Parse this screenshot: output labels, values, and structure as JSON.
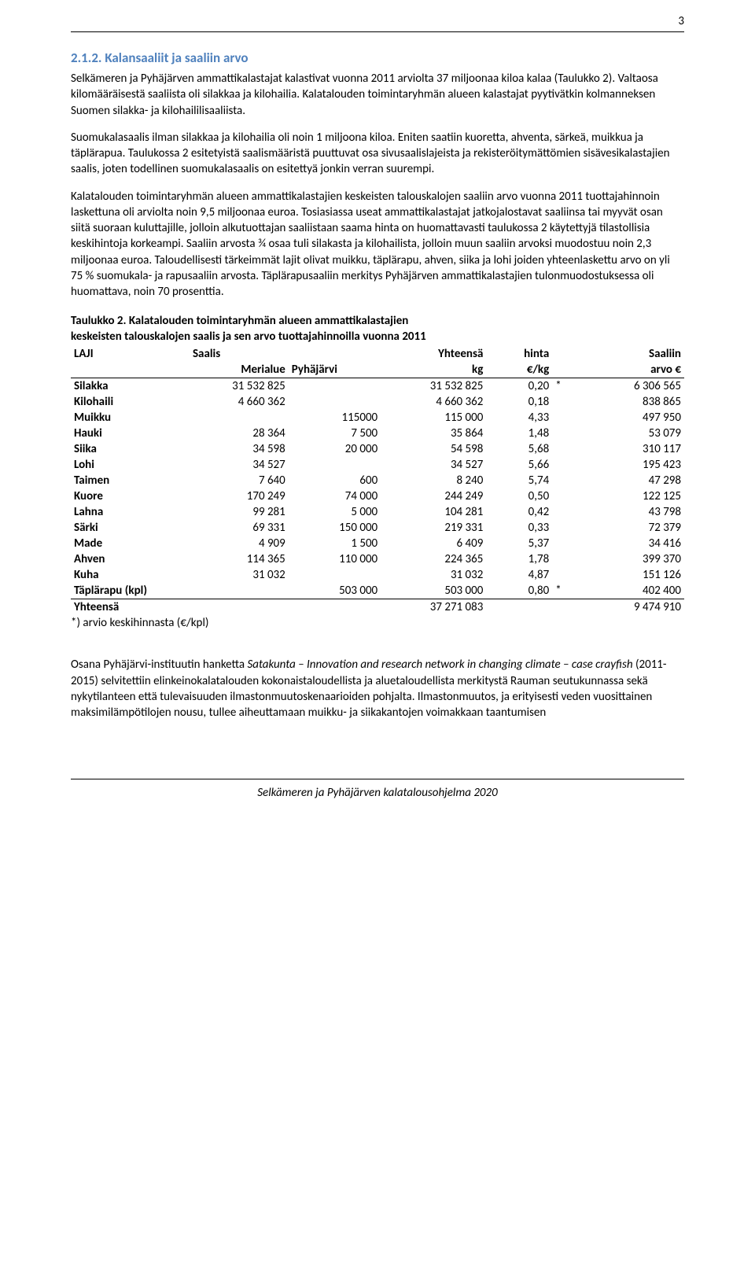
{
  "page_number": "3",
  "heading": "2.1.2.  Kalansaaliit ja saaliin arvo",
  "paragraphs": {
    "p1": "Selkämeren ja Pyhäjärven ammattikalastajat kalastivat vuonna 2011 arviolta 37 miljoonaa kiloa kalaa (Taulukko 2). Valtaosa kilomääräisestä saaliista oli silakkaa ja kilohailia. Kalatalouden toimintaryhmän alueen kalastajat pyytivätkin kolmanneksen Suomen silakka- ja kilohaililisaaliista.",
    "p2": "Suomukalasaalis ilman silakkaa ja kilohailia oli noin 1 miljoona kiloa. Eniten saatiin kuoretta, ahventa, särkeä, muikkua ja täplärapua. Taulukossa 2 esitetyistä saalismääristä puuttuvat osa sivusaalislajeista ja rekisteröitymättömien sisävesikalastajien saalis, joten todellinen suomukalasaalis on esitettyä jonkin verran suurempi.",
    "p3": "Kalatalouden toimintaryhmän alueen ammattikalastajien keskeisten talouskalojen saaliin arvo vuonna 2011 tuottajahinnoin laskettuna oli arviolta noin 9,5 miljoonaa euroa. Tosiasiassa useat ammattikalastajat jatkojalostavat saaliinsa tai myyvät osan siitä suoraan kuluttajille, jolloin alkutuottajan saaliistaan saama hinta on huomattavasti taulukossa 2 käytettyjä tilastollisia keskihintoja korkeampi. Saaliin arvosta ¾ osaa tuli silakasta ja kilohailista, jolloin muun saaliin arvoksi muodostuu noin 2,3 miljoonaa euroa. Taloudellisesti tärkeimmät lajit olivat muikku, täplärapu, ahven, siika ja lohi joiden yhteenlaskettu arvo on yli 75 % suomukala- ja rapusaaliin arvosta. Täplärapusaaliin merkitys Pyhäjärven ammattikalastajien tulonmuodostuksessa oli huomattava, noin 70 prosenttia.",
    "p4_pre": "Osana Pyhäjärvi-instituutin hanketta ",
    "p4_ital": "Satakunta  – Innovation and research network in changing climate – case crayfish",
    "p4_post": " (2011-2015) selvitettiin elinkeinokalatalouden kokonaistaloudellista ja aluetaloudellista merkitystä Rauman seutukunnassa sekä nykytilanteen että tulevaisuuden ilmastonmuutoskenaarioiden pohjalta. Ilmastonmuutos, ja erityisesti veden vuosittainen maksimilämpötilojen nousu, tullee aiheuttamaan muikku- ja siikakantojen voimakkaan taantumisen"
  },
  "table": {
    "title_l1": "Taulukko 2. Kalatalouden toimintaryhmän alueen ammattikalastajien",
    "title_l2": "keskeisten talouskalojen saalis ja sen arvo tuottajahinnoilla vuonna 2011",
    "head": {
      "laji": "LAJI",
      "saalis": "Saalis",
      "yhteensa": "Yhteensä",
      "hinta": "hinta",
      "saaliin": "Saaliin",
      "merialue": "Merialue",
      "pyhajarvi": "Pyhäjärvi",
      "kg": "kg",
      "eurkg": "€/kg",
      "arvo": "arvo €"
    },
    "rows": [
      {
        "laji": "Silakka",
        "meri": "31 532 825",
        "pyha": "",
        "yht": "31 532 825",
        "hinta": "0,20",
        "star": "*",
        "arvo": "6 306 565"
      },
      {
        "laji": "Kilohaili",
        "meri": "4 660 362",
        "pyha": "",
        "yht": "4 660 362",
        "hinta": "0,18",
        "star": "",
        "arvo": "838 865"
      },
      {
        "laji": "Muikku",
        "meri": "",
        "pyha": "115000",
        "yht": "115 000",
        "hinta": "4,33",
        "star": "",
        "arvo": "497 950"
      },
      {
        "laji": "Hauki",
        "meri": "28 364",
        "pyha": "7 500",
        "yht": "35 864",
        "hinta": "1,48",
        "star": "",
        "arvo": "53 079"
      },
      {
        "laji": "Siika",
        "meri": "34 598",
        "pyha": "20 000",
        "yht": "54 598",
        "hinta": "5,68",
        "star": "",
        "arvo": "310 117"
      },
      {
        "laji": "Lohi",
        "meri": "34 527",
        "pyha": "",
        "yht": "34 527",
        "hinta": "5,66",
        "star": "",
        "arvo": "195 423"
      },
      {
        "laji": "Taimen",
        "meri": "7 640",
        "pyha": "600",
        "yht": "8 240",
        "hinta": "5,74",
        "star": "",
        "arvo": "47 298"
      },
      {
        "laji": "Kuore",
        "meri": "170 249",
        "pyha": "74 000",
        "yht": "244 249",
        "hinta": "0,50",
        "star": "",
        "arvo": "122 125"
      },
      {
        "laji": "Lahna",
        "meri": "99 281",
        "pyha": "5 000",
        "yht": "104 281",
        "hinta": "0,42",
        "star": "",
        "arvo": "43 798"
      },
      {
        "laji": "Särki",
        "meri": "69 331",
        "pyha": "150 000",
        "yht": "219 331",
        "hinta": "0,33",
        "star": "",
        "arvo": "72 379"
      },
      {
        "laji": "Made",
        "meri": "4 909",
        "pyha": "1 500",
        "yht": "6 409",
        "hinta": "5,37",
        "star": "",
        "arvo": "34 416"
      },
      {
        "laji": "Ahven",
        "meri": "114 365",
        "pyha": "110 000",
        "yht": "224 365",
        "hinta": "1,78",
        "star": "",
        "arvo": "399 370"
      },
      {
        "laji": "Kuha",
        "meri": "31 032",
        "pyha": "",
        "yht": "31 032",
        "hinta": "4,87",
        "star": "",
        "arvo": "151 126"
      },
      {
        "laji": "Täplärapu (kpl)",
        "meri": "",
        "pyha": "503 000",
        "yht": "503 000",
        "hinta": "0,80",
        "star": "*",
        "arvo": "402 400"
      }
    ],
    "total": {
      "laji": "Yhteensä",
      "yht": "37 271 083",
      "arvo": "9 474 910"
    },
    "footnote": "*) arvio keskihinnasta (€/kpl)"
  },
  "footer": "Selkämeren ja Pyhäjärven kalatalousohjelma 2020"
}
